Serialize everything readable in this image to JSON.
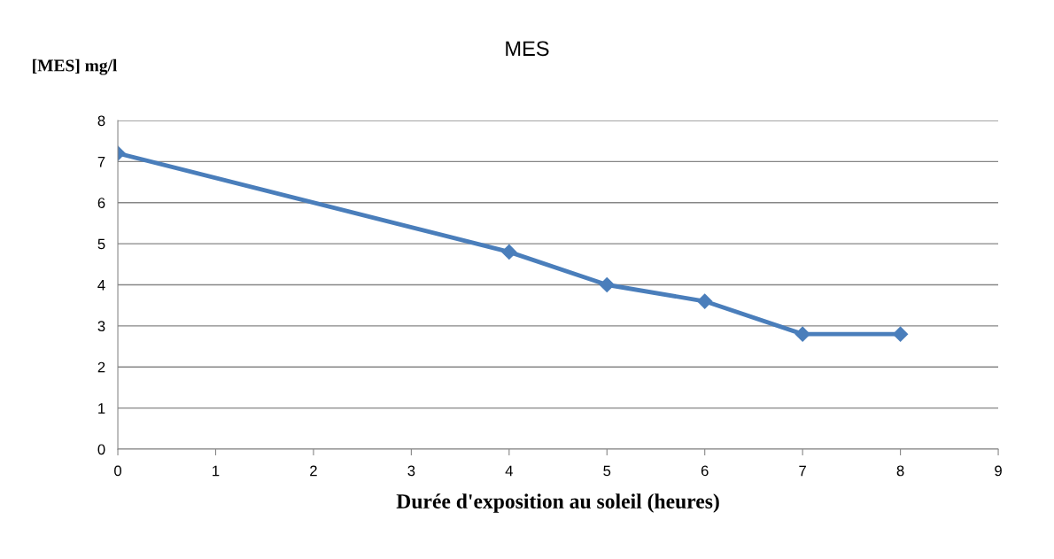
{
  "chart_data": {
    "type": "line",
    "title": "MES",
    "xlabel": "Durée d'exposition au soleil (heures)",
    "ylabel": "[MES] mg/l",
    "x": [
      0,
      4,
      5,
      6,
      7,
      8
    ],
    "series": [
      {
        "color": "#4a7ebb",
        "values": [
          7.2,
          4.8,
          4.0,
          3.6,
          2.8,
          2.8
        ]
      }
    ],
    "xlim": [
      0,
      9
    ],
    "xticks": [
      0,
      1,
      2,
      3,
      4,
      5,
      6,
      7,
      8,
      9
    ],
    "ylim": [
      0,
      8
    ],
    "yticks": [
      0,
      1,
      2,
      3,
      4,
      5,
      6,
      7,
      8
    ],
    "grid": "y",
    "marker": "diamond",
    "line_style": "solid",
    "legend": false
  }
}
